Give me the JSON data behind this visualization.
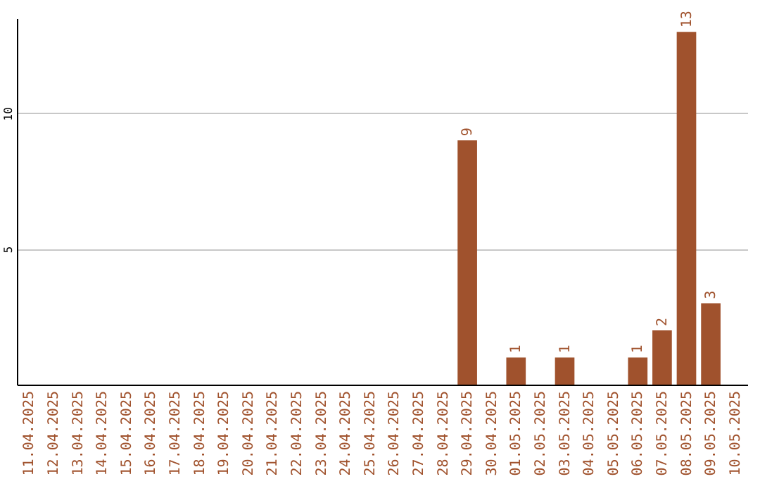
{
  "chart_data": {
    "type": "bar",
    "categories": [
      "11.04.2025",
      "12.04.2025",
      "13.04.2025",
      "14.04.2025",
      "15.04.2025",
      "16.04.2025",
      "17.04.2025",
      "18.04.2025",
      "19.04.2025",
      "20.04.2025",
      "21.04.2025",
      "22.04.2025",
      "23.04.2025",
      "24.04.2025",
      "25.04.2025",
      "26.04.2025",
      "27.04.2025",
      "28.04.2025",
      "29.04.2025",
      "30.04.2025",
      "01.05.2025",
      "02.05.2025",
      "03.05.2025",
      "04.05.2025",
      "05.05.2025",
      "06.05.2025",
      "07.05.2025",
      "08.05.2025",
      "09.05.2025",
      "10.05.2025"
    ],
    "values": [
      0,
      0,
      0,
      0,
      0,
      0,
      0,
      0,
      0,
      0,
      0,
      0,
      0,
      0,
      0,
      0,
      0,
      0,
      9,
      0,
      1,
      0,
      1,
      0,
      0,
      1,
      2,
      13,
      3,
      0
    ],
    "value_labels": [
      null,
      null,
      null,
      null,
      null,
      null,
      null,
      null,
      null,
      null,
      null,
      null,
      null,
      null,
      null,
      null,
      null,
      null,
      "9",
      null,
      "1",
      null,
      "1",
      null,
      null,
      "1",
      "2",
      "13",
      "3",
      null
    ],
    "color": "#a0522d",
    "ylim": [
      0,
      13.5
    ],
    "yticks": [
      5,
      10
    ],
    "grid": "y"
  }
}
